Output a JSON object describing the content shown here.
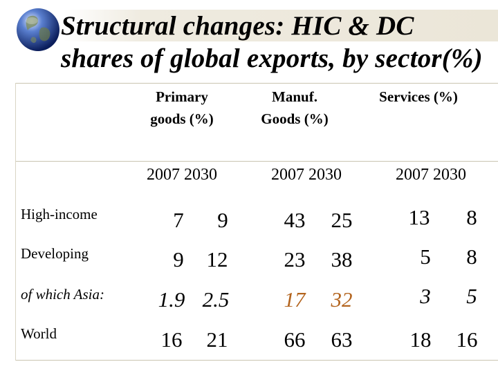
{
  "slide": {
    "title_line1": "Structural changes: HIC & DC",
    "title_line2": "shares of global exports, by sector(%)",
    "globe_icon": "globe-icon",
    "highlight_color": "#b3641e"
  },
  "table": {
    "headers": [
      {
        "line1": "Primary",
        "line2": "goods (%)"
      },
      {
        "line1": "Manuf.",
        "line2": "Goods (%)"
      },
      {
        "line1": "Services (%)",
        "line2": ""
      }
    ],
    "years": [
      "2007 2030",
      "2007 2030",
      "2007 2030"
    ],
    "rows": [
      {
        "label": "High-income",
        "values": [
          "7",
          "9",
          "43",
          "25",
          "13",
          "8"
        ]
      },
      {
        "label": "Developing",
        "values": [
          "9",
          "12",
          "23",
          "38",
          "5",
          "8"
        ]
      },
      {
        "label": "of which Asia:",
        "values": [
          "1.9",
          "2.5",
          "17",
          "32",
          "3",
          "5"
        ]
      },
      {
        "label": "World",
        "values": [
          "16",
          "21",
          "66",
          "63",
          "18",
          "16"
        ]
      }
    ]
  }
}
